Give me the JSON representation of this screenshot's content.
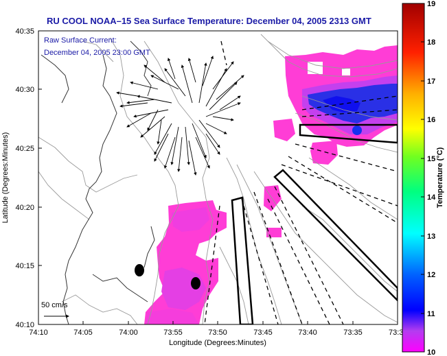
{
  "title": "RU COOL  NOAA–15  Sea Surface Temperature:  December 04, 2005 2313 GMT",
  "current_legend": {
    "line1": "Raw Surface Current:",
    "line2": "December 04, 2005 23:00 GMT"
  },
  "scale_label": "50 cm/s",
  "x_axis": {
    "label": "Longitude (Degrees:Minutes)",
    "ticks": [
      "74:10",
      "74:05",
      "74:00",
      "73:55",
      "73:50",
      "73:45",
      "73:40",
      "73:35",
      "73:3"
    ]
  },
  "y_axis": {
    "label": "Latitude (Degrees:Minutes)",
    "ticks": [
      "40:35",
      "40:30",
      "40:25",
      "40:20",
      "40:15",
      "40:10"
    ]
  },
  "colorbar": {
    "label": "Temperature (°C)",
    "ticks": [
      "19",
      "18",
      "17",
      "16",
      "15",
      "14",
      "13",
      "12",
      "11",
      "10"
    ],
    "min": 10,
    "max": 19
  },
  "colors": {
    "title": "#1a1aa6",
    "sst_warm": "#ff33cc",
    "sst_mid": "#d23cf0",
    "sst_cold": "#1a2ee0"
  }
}
